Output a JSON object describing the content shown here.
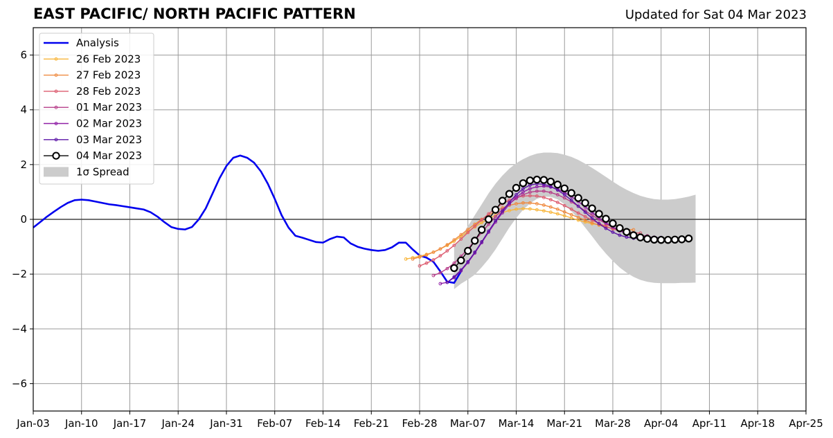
{
  "header": {
    "title": "EAST PACIFIC/ NORTH PACIFIC PATTERN",
    "updated": "Updated for Sat 04 Mar 2023"
  },
  "chart_data": {
    "type": "line",
    "title": "EAST PACIFIC/ NORTH PACIFIC PATTERN",
    "xlabel": "",
    "ylabel": "",
    "x_axis": {
      "start": "2023-01-03",
      "end": "2023-04-25",
      "tick_labels": [
        "Jan-03",
        "Jan-10",
        "Jan-17",
        "Jan-24",
        "Jan-31",
        "Feb-07",
        "Feb-14",
        "Feb-21",
        "Feb-28",
        "Mar-07",
        "Mar-14",
        "Mar-21",
        "Mar-28",
        "Apr-04",
        "Apr-11",
        "Apr-18",
        "Apr-25"
      ],
      "tick_dates": [
        "2023-01-03",
        "2023-01-10",
        "2023-01-17",
        "2023-01-24",
        "2023-01-31",
        "2023-02-07",
        "2023-02-14",
        "2023-02-21",
        "2023-02-28",
        "2023-03-07",
        "2023-03-14",
        "2023-03-21",
        "2023-03-28",
        "2023-04-04",
        "2023-04-11",
        "2023-04-18",
        "2023-04-25"
      ]
    },
    "ylim": [
      -7,
      7
    ],
    "y_ticks": [
      -6,
      -4,
      -2,
      0,
      2,
      4,
      6
    ],
    "y_tick_labels": [
      "−6",
      "−4",
      "−2",
      "0",
      "2",
      "4",
      "6"
    ],
    "grid": true,
    "zero_line": true,
    "legend_position": "top-left",
    "colors": {
      "analysis": "#0000ee",
      "spread": "#cccccc",
      "grid": "#9a9a9a"
    },
    "analysis": {
      "name": "Analysis",
      "start": "2023-01-03",
      "values": [
        -0.3,
        -0.1,
        0.1,
        0.28,
        0.45,
        0.6,
        0.7,
        0.72,
        0.7,
        0.65,
        0.6,
        0.55,
        0.52,
        0.48,
        0.44,
        0.4,
        0.36,
        0.26,
        0.1,
        -0.1,
        -0.28,
        -0.35,
        -0.37,
        -0.28,
        0.0,
        0.4,
        0.95,
        1.5,
        1.95,
        2.25,
        2.33,
        2.25,
        2.07,
        1.75,
        1.3,
        0.75,
        0.15,
        -0.3,
        -0.6,
        -0.67,
        -0.75,
        -0.83,
        -0.85,
        -0.72,
        -0.63,
        -0.66,
        -0.88,
        -1.0,
        -1.07,
        -1.12,
        -1.15,
        -1.12,
        -1.02,
        -0.85,
        -0.85,
        -1.1,
        -1.32,
        -1.4,
        -1.55,
        -1.9,
        -2.28,
        -2.32,
        -1.9
      ]
    },
    "forecasts": [
      {
        "name": "26 Feb 2023",
        "color": "#f8b53a",
        "start": "2023-02-26",
        "values": [
          -1.45,
          -1.4,
          -1.35,
          -1.28,
          -1.2,
          -1.08,
          -0.95,
          -0.8,
          -0.62,
          -0.45,
          -0.28,
          -0.12,
          0.02,
          0.15,
          0.25,
          0.32,
          0.37,
          0.39,
          0.38,
          0.35,
          0.31,
          0.26,
          0.2,
          0.13,
          0.05,
          -0.03,
          -0.1,
          -0.16,
          -0.2,
          -0.22,
          -0.23,
          -0.23
        ]
      },
      {
        "name": "27 Feb 2023",
        "color": "#ef8a40",
        "start": "2023-02-27",
        "values": [
          -1.45,
          -1.38,
          -1.3,
          -1.2,
          -1.08,
          -0.93,
          -0.75,
          -0.56,
          -0.37,
          -0.18,
          0.0,
          0.15,
          0.3,
          0.42,
          0.51,
          0.57,
          0.6,
          0.6,
          0.57,
          0.52,
          0.45,
          0.37,
          0.27,
          0.17,
          0.07,
          -0.03,
          -0.13,
          -0.21,
          -0.28,
          -0.33,
          -0.36,
          -0.38,
          -0.38
        ]
      },
      {
        "name": "28 Feb 2023",
        "color": "#dc5a6e",
        "start": "2023-02-28",
        "values": [
          -1.7,
          -1.6,
          -1.48,
          -1.33,
          -1.15,
          -0.95,
          -0.72,
          -0.48,
          -0.25,
          -0.02,
          0.2,
          0.4,
          0.57,
          0.7,
          0.8,
          0.85,
          0.86,
          0.85,
          0.8,
          0.72,
          0.62,
          0.5,
          0.37,
          0.23,
          0.1,
          -0.03,
          -0.15,
          -0.26,
          -0.35,
          -0.42,
          -0.46,
          -0.49,
          -0.5
        ]
      },
      {
        "name": "01 Mar 2023",
        "color": "#b63b88",
        "start": "2023-03-02",
        "values": [
          -2.05,
          -1.95,
          -1.8,
          -1.6,
          -1.35,
          -1.08,
          -0.78,
          -0.48,
          -0.18,
          0.1,
          0.36,
          0.58,
          0.76,
          0.9,
          0.99,
          1.03,
          1.03,
          0.98,
          0.9,
          0.78,
          0.64,
          0.48,
          0.31,
          0.15,
          -0.01,
          -0.16,
          -0.29,
          -0.4,
          -0.49,
          -0.55,
          -0.59,
          -0.6
        ]
      },
      {
        "name": "02 Mar 2023",
        "color": "#8f1ea6",
        "start": "2023-03-03",
        "values": [
          -2.35,
          -2.3,
          -2.13,
          -1.88,
          -1.58,
          -1.23,
          -0.85,
          -0.47,
          -0.1,
          0.24,
          0.55,
          0.8,
          1.0,
          1.12,
          1.19,
          1.21,
          1.18,
          1.1,
          0.98,
          0.83,
          0.65,
          0.45,
          0.25,
          0.05,
          -0.13,
          -0.29,
          -0.42,
          -0.52,
          -0.59,
          -0.63,
          -0.65,
          -0.65
        ]
      },
      {
        "name": "03 Mar 2023",
        "color": "#5a12a6",
        "start": "2023-03-04",
        "values": [
          -2.3,
          -2.1,
          -1.85,
          -1.55,
          -1.2,
          -0.82,
          -0.43,
          -0.05,
          0.3,
          0.62,
          0.9,
          1.12,
          1.25,
          1.3,
          1.28,
          1.2,
          1.07,
          0.9,
          0.7,
          0.48,
          0.26,
          0.04,
          -0.16,
          -0.33,
          -0.47,
          -0.58,
          -0.65,
          -0.69,
          -0.7,
          -0.7,
          -0.68,
          -0.66
        ]
      }
    ],
    "current": {
      "name": "04 Mar 2023",
      "color": "#000000",
      "start": "2023-03-05",
      "values": [
        -1.78,
        -1.5,
        -1.15,
        -0.78,
        -0.38,
        0.0,
        0.35,
        0.68,
        0.93,
        1.15,
        1.32,
        1.42,
        1.45,
        1.44,
        1.38,
        1.27,
        1.13,
        0.96,
        0.78,
        0.6,
        0.4,
        0.2,
        0.02,
        -0.15,
        -0.32,
        -0.46,
        -0.58,
        -0.66,
        -0.71,
        -0.74,
        -0.75,
        -0.75,
        -0.74,
        -0.73,
        -0.7
      ]
    },
    "spread": {
      "name": "1σ Spread",
      "start": "2023-03-05",
      "upper": [
        -1.0,
        -0.65,
        -0.25,
        0.15,
        0.55,
        0.95,
        1.3,
        1.6,
        1.85,
        2.05,
        2.2,
        2.32,
        2.4,
        2.44,
        2.44,
        2.42,
        2.36,
        2.28,
        2.17,
        2.03,
        1.88,
        1.72,
        1.55,
        1.38,
        1.22,
        1.08,
        0.96,
        0.86,
        0.79,
        0.74,
        0.72,
        0.72,
        0.74,
        0.78,
        0.83,
        0.9
      ],
      "lower": [
        -2.55,
        -2.35,
        -2.2,
        -2.02,
        -1.75,
        -1.45,
        -1.1,
        -0.7,
        -0.3,
        0.05,
        0.35,
        0.58,
        0.75,
        0.83,
        0.82,
        0.73,
        0.55,
        0.3,
        0.02,
        -0.3,
        -0.62,
        -0.95,
        -1.25,
        -1.52,
        -1.76,
        -1.95,
        -2.1,
        -2.21,
        -2.28,
        -2.32,
        -2.33,
        -2.33,
        -2.33,
        -2.32,
        -2.32,
        -2.31
      ]
    }
  }
}
